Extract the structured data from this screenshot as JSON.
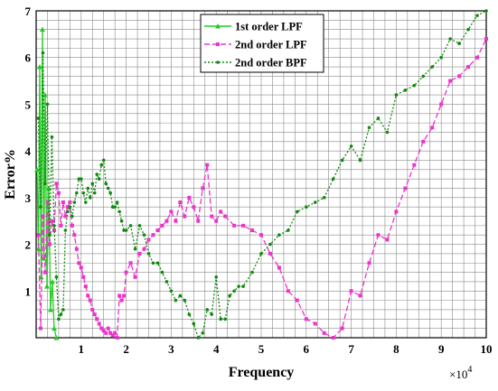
{
  "chart_data": {
    "type": "line",
    "title": "",
    "xlabel": "Frequency",
    "ylabel": "Error%",
    "x_scale_label": "×10",
    "x_scale_exponent": "4",
    "xlim": [
      0,
      10
    ],
    "ylim": [
      0,
      7
    ],
    "xticks": [
      "1",
      "2",
      "3",
      "4",
      "5",
      "6",
      "7",
      "8",
      "9",
      "10"
    ],
    "yticks": [
      "1",
      "2",
      "3",
      "4",
      "5",
      "6",
      "7"
    ],
    "grid": true,
    "legend_position": "top-center",
    "series": [
      {
        "name": "1st order LPF",
        "color": "#22cc22",
        "line_style": "solid",
        "marker": "triangle",
        "x": [
          0.02,
          0.05,
          0.08,
          0.11,
          0.14,
          0.17,
          0.2,
          0.24,
          0.28,
          0.32,
          0.36,
          0.4,
          0.45
        ],
        "y": [
          3.6,
          1.9,
          5.8,
          1.3,
          6.6,
          1.7,
          5.2,
          1.1,
          3.2,
          0.6,
          1.2,
          0.2,
          0.0
        ]
      },
      {
        "name": "2nd order LPF",
        "color": "#ee33cc",
        "line_style": "dashed",
        "marker": "square",
        "x": [
          0.05,
          0.1,
          0.15,
          0.2,
          0.25,
          0.3,
          0.35,
          0.4,
          0.45,
          0.5,
          0.55,
          0.6,
          0.65,
          0.7,
          0.75,
          0.8,
          0.85,
          0.9,
          0.95,
          1.0,
          1.05,
          1.1,
          1.15,
          1.2,
          1.25,
          1.3,
          1.35,
          1.4,
          1.45,
          1.5,
          1.55,
          1.6,
          1.65,
          1.7,
          1.75,
          1.8,
          1.85,
          1.9,
          1.95,
          2.0,
          2.1,
          2.2,
          2.3,
          2.4,
          2.5,
          2.6,
          2.7,
          2.8,
          2.9,
          3.0,
          3.1,
          3.2,
          3.3,
          3.4,
          3.5,
          3.6,
          3.7,
          3.8,
          3.9,
          4.0,
          4.1,
          4.2,
          4.4,
          4.6,
          4.8,
          5.0,
          5.2,
          5.4,
          5.6,
          5.8,
          6.0,
          6.2,
          6.4,
          6.6,
          6.8,
          7.0,
          7.2,
          7.4,
          7.6,
          7.8,
          8.0,
          8.2,
          8.4,
          8.6,
          8.8,
          9.0,
          9.2,
          9.4,
          9.6,
          9.8,
          10.0
        ],
        "y": [
          2.2,
          0.2,
          2.6,
          1.4,
          2.9,
          2.0,
          2.5,
          2.3,
          3.3,
          3.1,
          2.4,
          2.9,
          2.6,
          2.8,
          2.9,
          2.4,
          2.2,
          1.9,
          1.6,
          1.5,
          1.3,
          1.1,
          0.9,
          0.8,
          0.6,
          0.5,
          0.4,
          0.3,
          0.2,
          0.15,
          0.1,
          0.2,
          0.1,
          0.05,
          0.1,
          0.0,
          0.9,
          0.8,
          0.9,
          1.4,
          1.6,
          1.3,
          1.8,
          1.9,
          2.1,
          2.2,
          2.3,
          2.4,
          2.5,
          2.7,
          2.5,
          2.9,
          2.6,
          3.0,
          2.8,
          2.5,
          3.2,
          3.7,
          2.6,
          2.5,
          2.7,
          2.6,
          2.4,
          2.4,
          2.3,
          2.2,
          1.8,
          1.5,
          1.0,
          0.8,
          0.4,
          0.3,
          0.1,
          0.0,
          0.2,
          1.0,
          0.9,
          1.6,
          2.2,
          2.1,
          2.7,
          3.2,
          3.7,
          4.2,
          4.5,
          5.0,
          5.5,
          5.6,
          5.8,
          6.0,
          6.4
        ]
      },
      {
        "name": "2nd order BPF",
        "color": "#118811",
        "line_style": "dotted",
        "marker": "dot",
        "x": [
          0.05,
          0.1,
          0.15,
          0.2,
          0.25,
          0.3,
          0.35,
          0.4,
          0.45,
          0.5,
          0.55,
          0.6,
          0.65,
          0.7,
          0.75,
          0.8,
          0.85,
          0.9,
          0.95,
          1.0,
          1.05,
          1.1,
          1.15,
          1.2,
          1.25,
          1.3,
          1.35,
          1.4,
          1.45,
          1.5,
          1.55,
          1.6,
          1.65,
          1.7,
          1.75,
          1.8,
          1.85,
          1.9,
          1.95,
          2.0,
          2.1,
          2.2,
          2.3,
          2.4,
          2.5,
          2.6,
          2.7,
          2.8,
          2.9,
          3.0,
          3.1,
          3.2,
          3.3,
          3.4,
          3.5,
          3.6,
          3.7,
          3.8,
          3.9,
          4.0,
          4.1,
          4.2,
          4.3,
          4.4,
          4.5,
          4.6,
          4.8,
          5.0,
          5.2,
          5.4,
          5.6,
          5.8,
          6.0,
          6.2,
          6.4,
          6.6,
          6.8,
          7.0,
          7.2,
          7.4,
          7.6,
          7.8,
          8.0,
          8.2,
          8.4,
          8.6,
          8.8,
          9.0,
          9.2,
          9.4,
          9.6,
          9.8,
          10.0
        ],
        "y": [
          4.7,
          2.8,
          6.1,
          3.3,
          5.0,
          2.2,
          4.3,
          2.4,
          1.3,
          0.4,
          0.5,
          0.6,
          2.3,
          2.7,
          2.8,
          2.6,
          2.9,
          3.1,
          3.4,
          3.4,
          3.1,
          2.9,
          3.2,
          3.0,
          3.3,
          3.1,
          3.5,
          3.4,
          3.7,
          3.8,
          3.3,
          3.2,
          3.1,
          2.8,
          2.8,
          2.9,
          2.7,
          2.5,
          2.3,
          2.3,
          2.4,
          1.9,
          2.4,
          2.2,
          1.8,
          1.6,
          1.6,
          1.4,
          1.2,
          1.0,
          0.8,
          0.9,
          0.8,
          0.5,
          0.3,
          0.0,
          0.1,
          0.6,
          0.5,
          1.3,
          0.4,
          0.4,
          0.9,
          1.0,
          1.1,
          1.1,
          1.4,
          1.8,
          2.0,
          2.2,
          2.3,
          2.7,
          2.8,
          2.9,
          3.0,
          3.4,
          3.8,
          4.1,
          3.8,
          4.5,
          4.7,
          4.4,
          5.2,
          5.3,
          5.4,
          5.6,
          5.8,
          6.0,
          6.4,
          6.3,
          6.6,
          6.9,
          7.0
        ]
      }
    ]
  }
}
